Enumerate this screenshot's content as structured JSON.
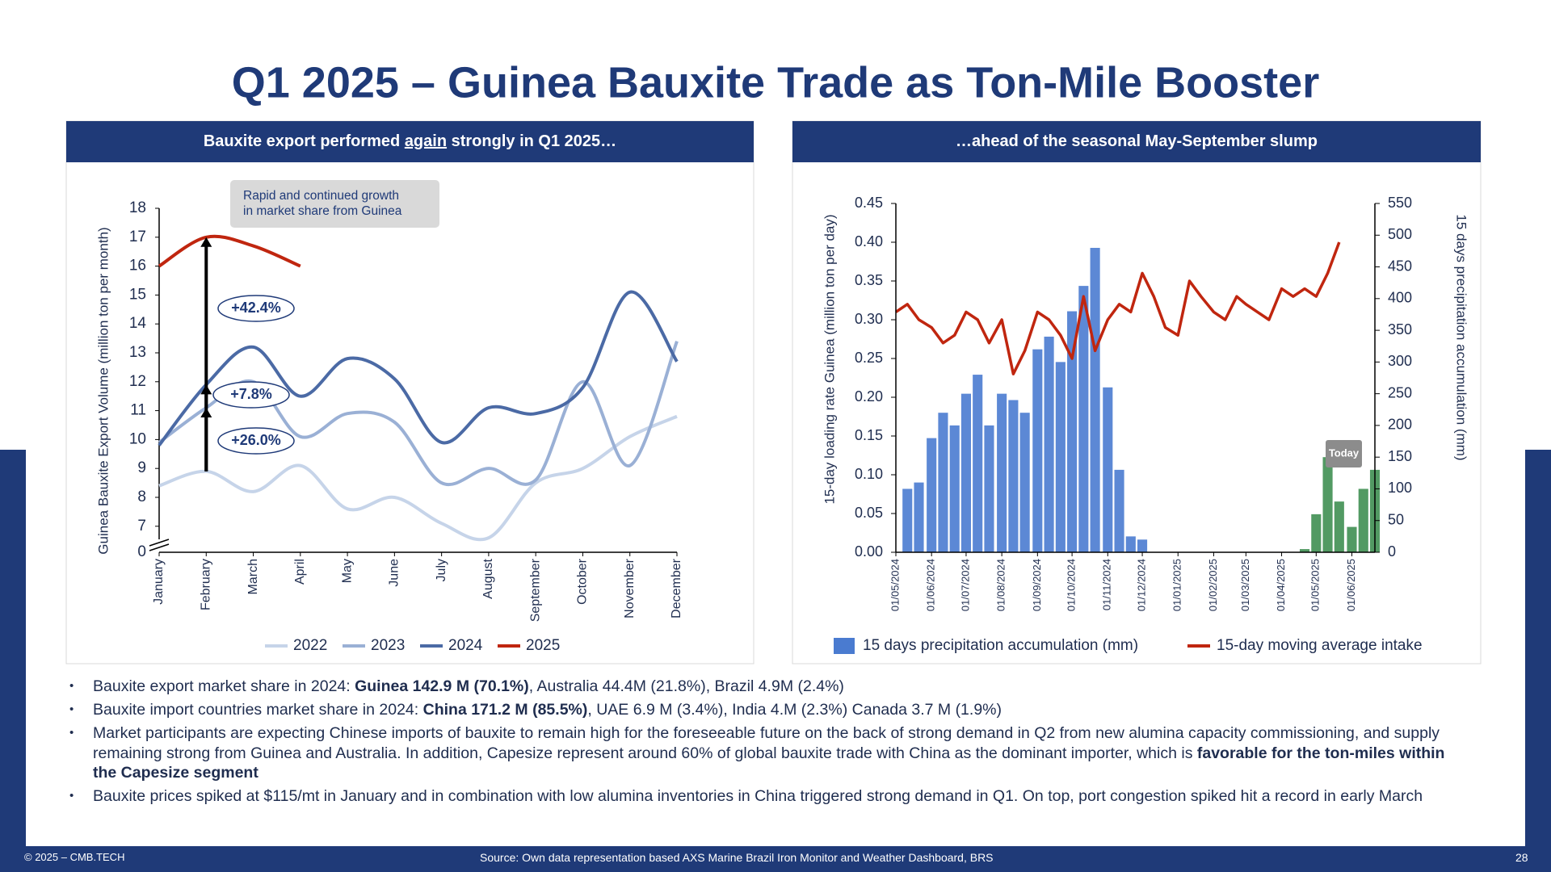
{
  "title": "Q1 2025 – Guinea Bauxite Trade as Ton-Mile Booster",
  "panels": [
    {
      "header": [
        {
          "text": "Bauxite export performed "
        },
        {
          "text": "again",
          "underline": true
        },
        {
          "text": " strongly in Q1 2025…"
        }
      ]
    },
    {
      "header": [
        {
          "text": "…ahead of the seasonal May-September slump"
        }
      ]
    }
  ],
  "chart_data": [
    {
      "type": "line",
      "y_label": "Guinea Bauxite Export Volume (million ton per month)",
      "categories": [
        "January",
        "February",
        "March",
        "April",
        "May",
        "June",
        "July",
        "August",
        "September",
        "October",
        "November",
        "December"
      ],
      "series": [
        {
          "name": "2022",
          "color": "#c6d4e9",
          "values": [
            8.4,
            8.9,
            8.2,
            9.1,
            7.6,
            8.0,
            7.1,
            6.6,
            8.5,
            9.0,
            10.1,
            10.8
          ]
        },
        {
          "name": "2023",
          "color": "#9ab0d5",
          "values": [
            9.9,
            11.1,
            12.0,
            10.1,
            10.9,
            10.6,
            8.5,
            9.0,
            8.6,
            12.0,
            9.1,
            13.4
          ]
        },
        {
          "name": "2024",
          "color": "#4b6aa5",
          "values": [
            9.8,
            11.9,
            13.2,
            11.5,
            12.8,
            12.1,
            9.9,
            11.1,
            10.9,
            11.8,
            15.1,
            12.7
          ]
        },
        {
          "name": "2025",
          "color": "#c0260f",
          "values": [
            16.0,
            17.0,
            16.7,
            16.0,
            null,
            null,
            null,
            null,
            null,
            null,
            null,
            null
          ]
        }
      ],
      "ylim": [
        6.1,
        18
      ],
      "yticks": [
        7,
        8,
        9,
        10,
        11,
        12,
        13,
        14,
        15,
        16,
        17,
        18
      ],
      "y_break_tick": 0,
      "annotations": [
        "+42.4%",
        "+7.8%",
        "+26.0%"
      ],
      "note": [
        "Rapid and continued growth",
        "in market share from Guinea"
      ]
    },
    {
      "type": "combo",
      "y_label": "15-day loading rate Guinea (million ton per day)",
      "y2_label": "15 days precipitation accumulation (mm)",
      "x": [
        "01/05/2024",
        "11/05/2024",
        "21/05/2024",
        "01/06/2024",
        "11/06/2024",
        "21/06/2024",
        "01/07/2024",
        "11/07/2024",
        "21/07/2024",
        "01/08/2024",
        "11/08/2024",
        "21/08/2024",
        "01/09/2024",
        "11/09/2024",
        "21/09/2024",
        "01/10/2024",
        "11/10/2024",
        "21/10/2024",
        "01/11/2024",
        "11/11/2024",
        "21/11/2024",
        "01/12/2024",
        "11/12/2024",
        "21/12/2024",
        "01/01/2025",
        "11/01/2025",
        "21/01/2025",
        "01/02/2025",
        "11/02/2025",
        "21/02/2025",
        "01/03/2025",
        "11/03/2025",
        "21/03/2025",
        "01/04/2025",
        "11/04/2025",
        "21/04/2025",
        "01/05/2025",
        "11/05/2025",
        "21/05/2025",
        "01/06/2025",
        "11/06/2025",
        "21/06/2025"
      ],
      "xlim": [
        "01/05/2024",
        "21/06/2025"
      ],
      "xticks": [
        "01/05/2024",
        "01/06/2024",
        "01/07/2024",
        "01/08/2024",
        "01/09/2024",
        "01/10/2024",
        "01/11/2024",
        "01/12/2024",
        "01/01/2025",
        "01/02/2025",
        "01/03/2025",
        "01/04/2025",
        "01/05/2025",
        "01/06/2025"
      ],
      "ylim": [
        0,
        0.45
      ],
      "yticks": [
        {
          "value": 0,
          "label": "0.00"
        },
        0.05,
        {
          "value": 0.1,
          "label": "0.10"
        },
        0.15,
        {
          "value": 0.2,
          "label": "0.20"
        },
        0.25,
        {
          "value": 0.3,
          "label": "0.30"
        },
        0.35,
        {
          "value": 0.4,
          "label": "0.40"
        },
        0.45
      ],
      "y2lim": [
        0,
        550
      ],
      "y2ticks": [
        0,
        50,
        100,
        150,
        200,
        250,
        300,
        350,
        400,
        450,
        500,
        550
      ],
      "highlight_from": "01/04/2025",
      "highlight_color": "#3f8f52",
      "series": [
        {
          "name": "15 days precipitation accumulation (mm)",
          "color": "#4a7bd0",
          "kind": "bar",
          "axis": "y2",
          "values": [
            0,
            100,
            110,
            180,
            220,
            200,
            250,
            280,
            200,
            250,
            240,
            220,
            320,
            340,
            300,
            380,
            420,
            480,
            260,
            130,
            25,
            20,
            0,
            0,
            0,
            0,
            0,
            0,
            0,
            0,
            0,
            0,
            0,
            0,
            0,
            5,
            60,
            150,
            80,
            40,
            100,
            130
          ]
        },
        {
          "name": "15-day moving average intake",
          "color": "#c0260f",
          "kind": "line",
          "values": [
            0.31,
            0.32,
            0.3,
            0.29,
            0.27,
            0.28,
            0.31,
            0.3,
            0.27,
            0.3,
            0.23,
            0.26,
            0.31,
            0.3,
            0.28,
            0.25,
            0.33,
            0.26,
            0.3,
            0.32,
            0.31,
            0.36,
            0.33,
            0.29,
            0.28,
            0.35,
            0.33,
            0.31,
            0.3,
            0.33,
            0.32,
            0.31,
            0.3,
            0.34,
            0.33,
            0.34,
            0.33,
            0.36,
            0.4,
            null,
            null,
            null
          ]
        }
      ],
      "annotations": [
        "Today"
      ]
    }
  ],
  "bullets": [
    [
      {
        "text": "Bauxite export market share in 2024: "
      },
      {
        "text": "Guinea 142.9 M (70.1%)",
        "bold": true
      },
      {
        "text": ", Australia 44.4M (21.8%), Brazil 4.9M (2.4%)"
      }
    ],
    [
      {
        "text": "Bauxite import countries market share in 2024: "
      },
      {
        "text": "China 171.2 M (85.5%)",
        "bold": true
      },
      {
        "text": ", UAE 6.9 M (3.4%), India 4.M (2.3%) Canada 3.7 M (1.9%)"
      }
    ],
    [
      {
        "text": "Market participants are expecting Chinese imports of bauxite to remain high for the foreseeable future on the back of strong demand in Q2 from new alumina capacity commissioning, and supply remaining strong from Guinea and Australia. In addition, Capesize represent around 60% of global bauxite trade with China as the dominant importer, which is "
      },
      {
        "text": "favorable for the ton-miles within the Capesize segment",
        "bold": true
      }
    ],
    [
      {
        "text": "Bauxite prices spiked at $115/mt in January and in combination with low alumina inventories in China triggered strong demand in Q1. On top, port congestion spiked hit a record in early March"
      }
    ]
  ],
  "footer": {
    "copyright": "© 2025 – CMB.TECH",
    "source": "Source:  Own data representation based AXS Marine Brazil Iron Monitor and Weather Dashboard, BRS",
    "page": "28"
  }
}
